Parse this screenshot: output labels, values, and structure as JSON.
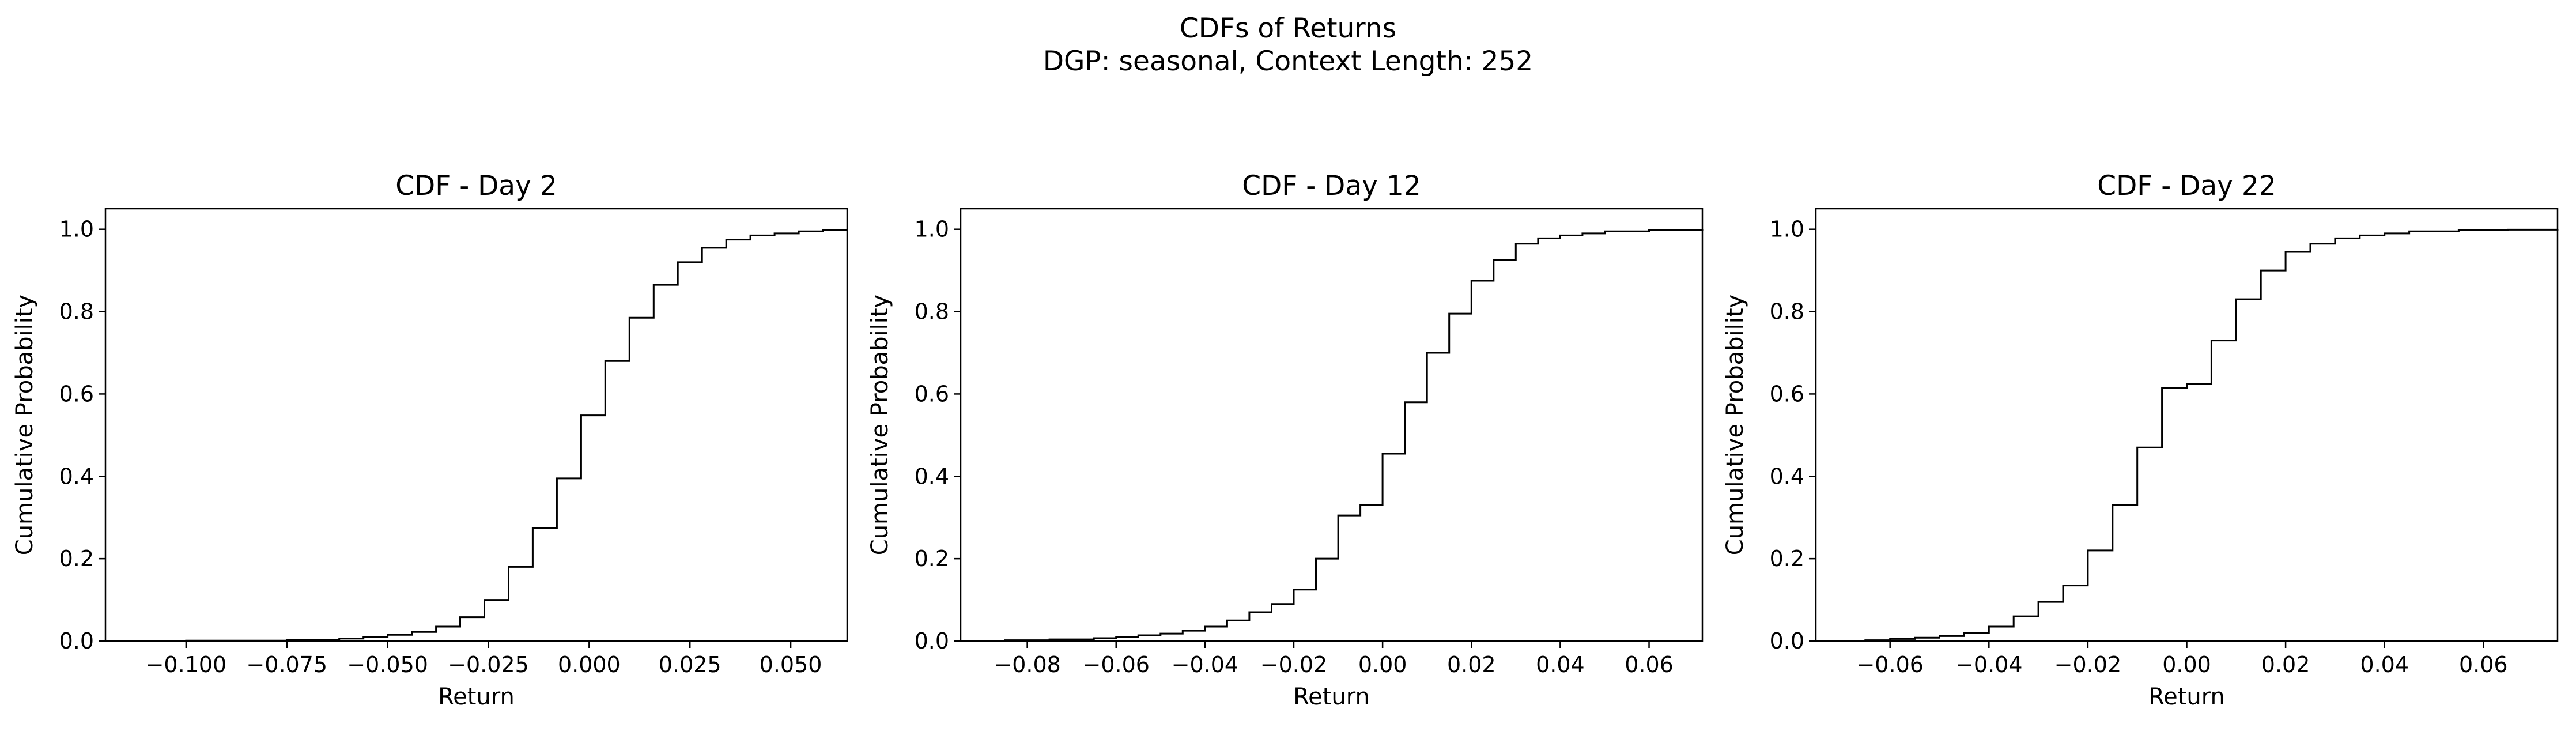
{
  "figure": {
    "title_line1": "CDFs of Returns",
    "title_line2": "DGP: seasonal, Context Length: 252"
  },
  "chart_data": [
    {
      "type": "line",
      "step": true,
      "title": "CDF - Day 2",
      "xlabel": "Return",
      "ylabel": "Cumulative Probability",
      "xlim": [
        -0.12,
        0.064
      ],
      "ylim": [
        0,
        1.05
      ],
      "xticks": [
        -0.1,
        -0.075,
        -0.05,
        -0.025,
        0.0,
        0.025,
        0.05
      ],
      "xtick_labels": [
        "−0.100",
        "−0.075",
        "−0.050",
        "−0.025",
        "0.000",
        "0.025",
        "0.050"
      ],
      "yticks": [
        0,
        0.2,
        0.4,
        0.6,
        0.8,
        1.0
      ],
      "ytick_labels": [
        "0.0",
        "0.2",
        "0.4",
        "0.6",
        "0.8",
        "1.0"
      ],
      "x": [
        -0.12,
        -0.1,
        -0.075,
        -0.062,
        -0.056,
        -0.05,
        -0.044,
        -0.038,
        -0.032,
        -0.026,
        -0.02,
        -0.014,
        -0.008,
        -0.002,
        0.004,
        0.01,
        0.016,
        0.022,
        0.028,
        0.034,
        0.04,
        0.046,
        0.052,
        0.058,
        0.064
      ],
      "y": [
        0.0,
        0.001,
        0.003,
        0.006,
        0.01,
        0.015,
        0.022,
        0.035,
        0.058,
        0.1,
        0.18,
        0.275,
        0.395,
        0.548,
        0.68,
        0.785,
        0.865,
        0.92,
        0.955,
        0.975,
        0.985,
        0.99,
        0.995,
        0.998,
        1.0
      ]
    },
    {
      "type": "line",
      "step": true,
      "title": "CDF - Day 12",
      "xlabel": "Return",
      "ylabel": "Cumulative Probability",
      "xlim": [
        -0.095,
        0.072
      ],
      "ylim": [
        0,
        1.05
      ],
      "xticks": [
        -0.08,
        -0.06,
        -0.04,
        -0.02,
        0.0,
        0.02,
        0.04,
        0.06
      ],
      "xtick_labels": [
        "−0.08",
        "−0.06",
        "−0.04",
        "−0.02",
        "0.00",
        "0.02",
        "0.04",
        "0.06"
      ],
      "yticks": [
        0,
        0.2,
        0.4,
        0.6,
        0.8,
        1.0
      ],
      "ytick_labels": [
        "0.0",
        "0.2",
        "0.4",
        "0.6",
        "0.8",
        "1.0"
      ],
      "x": [
        -0.095,
        -0.085,
        -0.075,
        -0.065,
        -0.06,
        -0.055,
        -0.05,
        -0.045,
        -0.04,
        -0.035,
        -0.03,
        -0.025,
        -0.02,
        -0.015,
        -0.01,
        -0.005,
        0.0,
        0.005,
        0.01,
        0.015,
        0.02,
        0.025,
        0.03,
        0.035,
        0.04,
        0.045,
        0.05,
        0.06,
        0.072
      ],
      "y": [
        0.0,
        0.002,
        0.004,
        0.007,
        0.01,
        0.014,
        0.018,
        0.025,
        0.035,
        0.05,
        0.07,
        0.09,
        0.125,
        0.2,
        0.305,
        0.33,
        0.455,
        0.58,
        0.7,
        0.795,
        0.875,
        0.925,
        0.965,
        0.978,
        0.985,
        0.99,
        0.995,
        0.998,
        1.0
      ]
    },
    {
      "type": "line",
      "step": true,
      "title": "CDF - Day 22",
      "xlabel": "Return",
      "ylabel": "Cumulative Probability",
      "xlim": [
        -0.075,
        0.075
      ],
      "ylim": [
        0,
        1.05
      ],
      "xticks": [
        -0.06,
        -0.04,
        -0.02,
        0.0,
        0.02,
        0.04,
        0.06
      ],
      "xtick_labels": [
        "−0.06",
        "−0.04",
        "−0.02",
        "0.00",
        "0.02",
        "0.04",
        "0.06"
      ],
      "yticks": [
        0,
        0.2,
        0.4,
        0.6,
        0.8,
        1.0
      ],
      "ytick_labels": [
        "0.0",
        "0.2",
        "0.4",
        "0.6",
        "0.8",
        "1.0"
      ],
      "x": [
        -0.075,
        -0.065,
        -0.06,
        -0.055,
        -0.05,
        -0.045,
        -0.04,
        -0.035,
        -0.03,
        -0.025,
        -0.02,
        -0.015,
        -0.01,
        -0.005,
        0.0,
        0.005,
        0.01,
        0.015,
        0.02,
        0.025,
        0.03,
        0.035,
        0.04,
        0.045,
        0.055,
        0.065,
        0.075
      ],
      "y": [
        0.0,
        0.002,
        0.005,
        0.008,
        0.012,
        0.02,
        0.035,
        0.06,
        0.095,
        0.135,
        0.22,
        0.33,
        0.47,
        0.615,
        0.625,
        0.73,
        0.83,
        0.9,
        0.945,
        0.965,
        0.978,
        0.985,
        0.99,
        0.995,
        0.998,
        0.999,
        1.0
      ]
    }
  ]
}
